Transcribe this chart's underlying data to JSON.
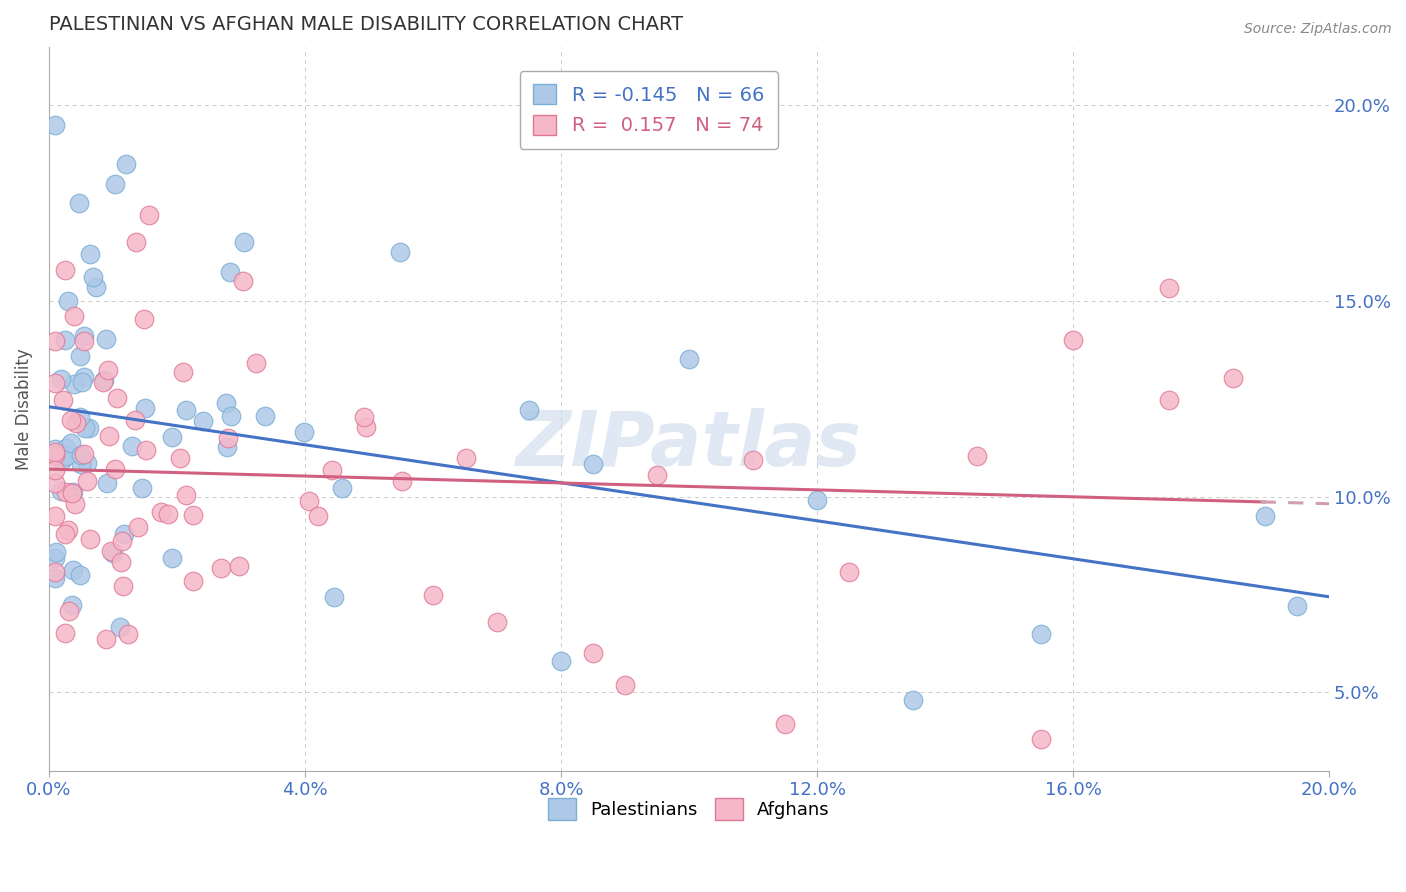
{
  "title": "PALESTINIAN VS AFGHAN MALE DISABILITY CORRELATION CHART",
  "source": "Source: ZipAtlas.com",
  "ylabel": "Male Disability",
  "xlim": [
    0.0,
    0.2
  ],
  "ylim": [
    0.03,
    0.215
  ],
  "xtick_vals": [
    0.0,
    0.04,
    0.08,
    0.12,
    0.16,
    0.2
  ],
  "ytick_vals": [
    0.05,
    0.1,
    0.15,
    0.2
  ],
  "xtick_labels": [
    "0.0%",
    "4.0%",
    "8.0%",
    "12.0%",
    "16.0%",
    "20.0%"
  ],
  "ytick_labels": [
    "5.0%",
    "10.0%",
    "15.0%",
    "20.0%"
  ],
  "palestinian_color": "#aec8e8",
  "afghan_color": "#f5b8c8",
  "palestinian_edge": "#7aafd4",
  "afghan_edge": "#e07898",
  "palestinian_R": -0.145,
  "palestinian_N": 66,
  "afghan_R": 0.157,
  "afghan_N": 74,
  "trend_blue": "#4472c4",
  "trend_pink": "#d06080",
  "trend_pink_dashed": "#d0a0b0",
  "watermark": "ZIPatlas",
  "background": "#ffffff",
  "grid_color": "#cccccc",
  "title_color": "#333333",
  "source_color": "#888888",
  "tick_color": "#4472c4",
  "ylabel_color": "#555555"
}
